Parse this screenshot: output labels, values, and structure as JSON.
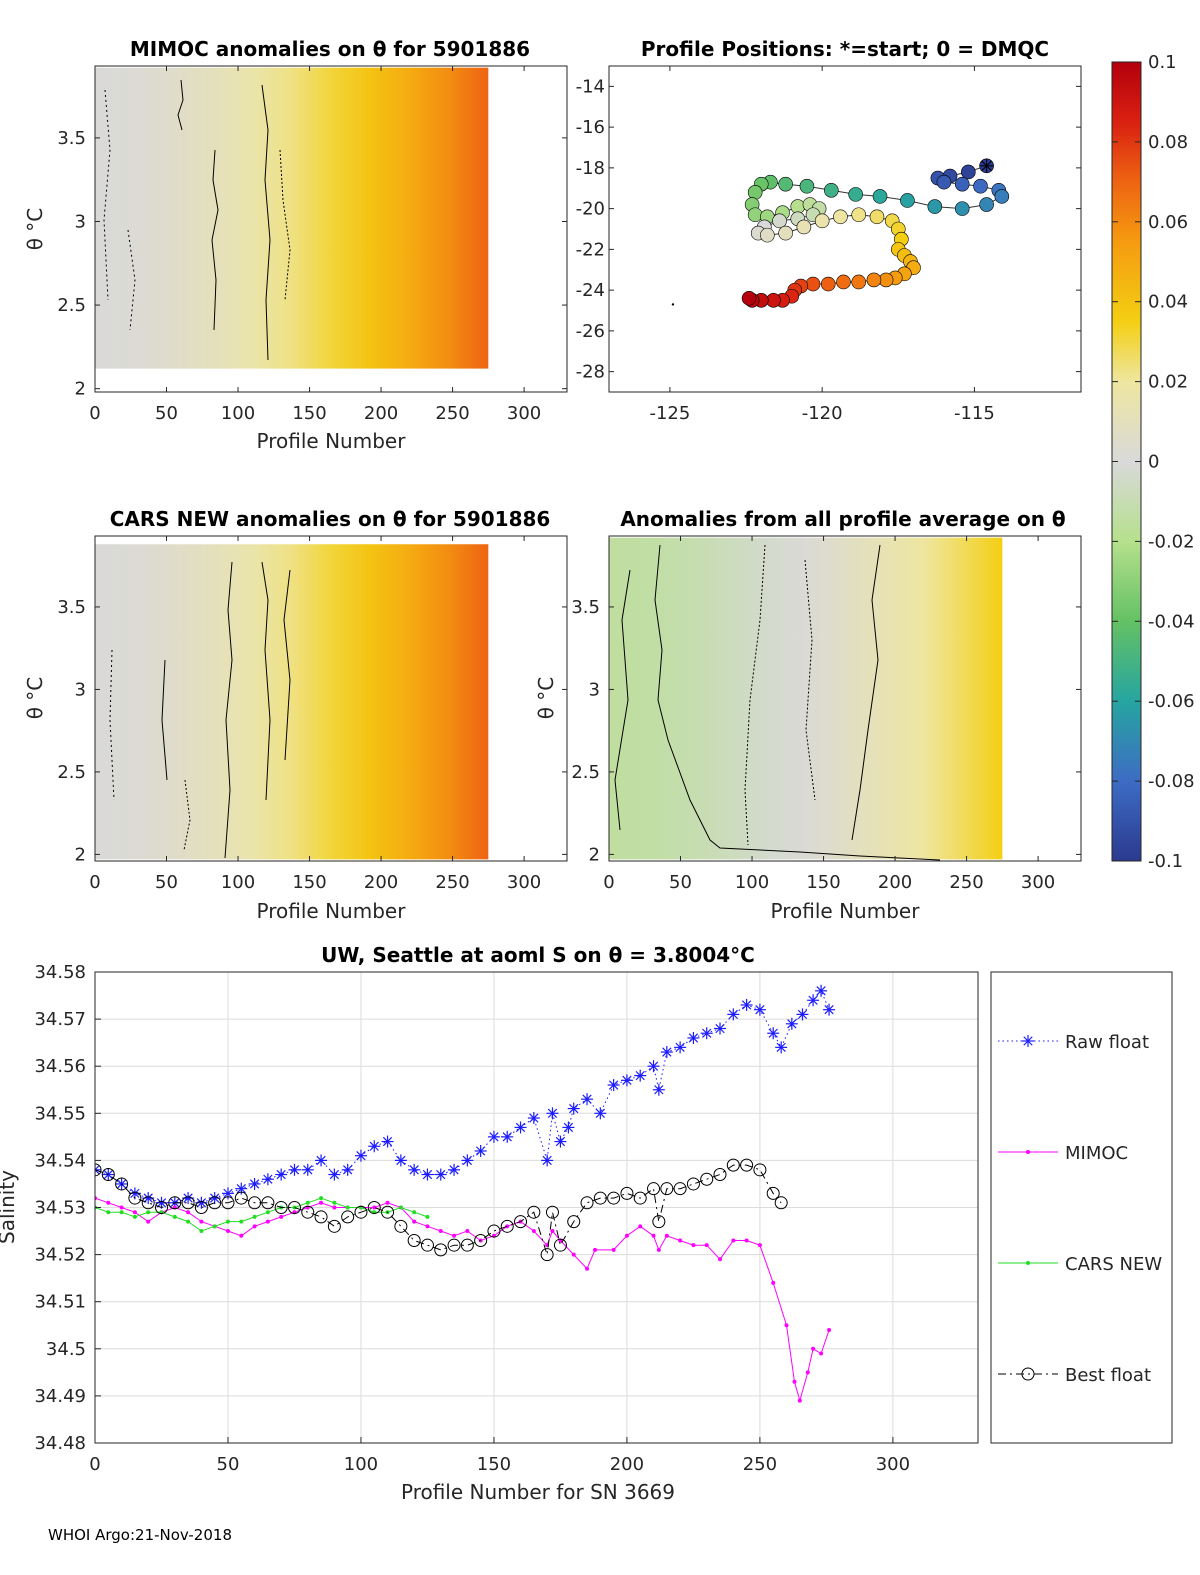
{
  "footer": "WHOI Argo:21-Nov-2018",
  "chart_data": [
    {
      "type": "heatmap",
      "id": "mimoc",
      "title": "MIMOC anomalies on θ  for 5901886",
      "xlabel": "Profile Number",
      "ylabel": "θ °C",
      "xlim": [
        0,
        330
      ],
      "ylim": [
        1.98,
        3.93
      ],
      "xticks": [
        0,
        50,
        100,
        150,
        200,
        250,
        300
      ],
      "yticks": [
        2,
        2.5,
        3,
        3.5
      ],
      "data_x_range": [
        0,
        275
      ],
      "data_theta_range": [
        2.12,
        3.92
      ],
      "anomaly_start": 0.0,
      "anomaly_end": 0.07
    },
    {
      "type": "scatter",
      "id": "positions",
      "title": "Profile Positions: *=start; 0 = DMQC",
      "xlabel": "",
      "ylabel": "",
      "xlim": [
        -127,
        -111.5
      ],
      "ylim": [
        -29,
        -13
      ],
      "xticks": [
        -125,
        -120,
        -115
      ],
      "yticks": [
        -14,
        -16,
        -18,
        -20,
        -22,
        -24,
        -26,
        -28
      ],
      "track_lon": [
        -114.6,
        -115.2,
        -115.8,
        -116.2,
        -116.0,
        -115.4,
        -114.8,
        -114.2,
        -114.1,
        -114.6,
        -115.4,
        -116.3,
        -117.2,
        -118.1,
        -118.9,
        -119.7,
        -120.5,
        -121.2,
        -121.7,
        -122.0,
        -122.2,
        -122.3,
        -122.2,
        -121.8,
        -121.3,
        -120.8,
        -120.4,
        -120.1,
        -120.3,
        -120.8,
        -121.4,
        -121.9,
        -122.1,
        -121.8,
        -121.2,
        -120.6,
        -120.0,
        -119.4,
        -118.8,
        -118.2,
        -117.7,
        -117.5,
        -117.4,
        -117.5,
        -117.3,
        -117.1,
        -117.0,
        -117.3,
        -117.6,
        -117.9,
        -118.3,
        -118.8,
        -119.3,
        -119.8,
        -120.3,
        -120.7,
        -120.9,
        -121.0,
        -121.3,
        -121.6,
        -122.0,
        -122.3,
        -122.4
      ],
      "track_lat": [
        -17.9,
        -18.2,
        -18.4,
        -18.5,
        -18.7,
        -18.8,
        -18.9,
        -19.1,
        -19.4,
        -19.8,
        -20.0,
        -19.9,
        -19.6,
        -19.4,
        -19.3,
        -19.1,
        -18.9,
        -18.8,
        -18.7,
        -18.8,
        -19.2,
        -19.8,
        -20.3,
        -20.4,
        -20.2,
        -19.9,
        -19.8,
        -20.0,
        -20.3,
        -20.5,
        -20.6,
        -20.9,
        -21.2,
        -21.3,
        -21.2,
        -20.9,
        -20.6,
        -20.4,
        -20.3,
        -20.4,
        -20.6,
        -21.0,
        -21.5,
        -22.0,
        -22.3,
        -22.6,
        -22.9,
        -23.2,
        -23.4,
        -23.5,
        -23.5,
        -23.6,
        -23.6,
        -23.7,
        -23.7,
        -23.8,
        -24.0,
        -24.3,
        -24.5,
        -24.5,
        -24.5,
        -24.5,
        -24.4
      ],
      "stray_point": [
        -124.9,
        -24.7
      ]
    },
    {
      "type": "heatmap",
      "id": "cars",
      "title": "CARS NEW anomalies on θ for 5901886",
      "xlabel": "Profile Number",
      "ylabel": "θ °C",
      "xlim": [
        0,
        330
      ],
      "ylim": [
        1.96,
        3.93
      ],
      "xticks": [
        0,
        50,
        100,
        150,
        200,
        250,
        300
      ],
      "yticks": [
        2,
        2.5,
        3,
        3.5
      ],
      "data_x_range": [
        0,
        275
      ],
      "data_theta_range": [
        1.97,
        3.88
      ],
      "anomaly_start": 0.0,
      "anomaly_end": 0.07
    },
    {
      "type": "heatmap",
      "id": "allprof",
      "title": "Anomalies from all profile average on θ",
      "xlabel": "Profile Number",
      "ylabel": "θ °C",
      "xlim": [
        0,
        330
      ],
      "ylim": [
        1.96,
        3.93
      ],
      "xticks": [
        0,
        50,
        100,
        150,
        200,
        250,
        300
      ],
      "yticks": [
        2,
        2.5,
        3,
        3.5
      ],
      "data_x_range": [
        0,
        275
      ],
      "data_theta_range": [
        1.97,
        3.92
      ],
      "anomaly_start": -0.015,
      "anomaly_end": 0.035
    },
    {
      "type": "colorbar",
      "id": "colorbar",
      "range": [
        -0.1,
        0.1
      ],
      "tick_labels": [
        "0.1",
        "0.08",
        "0.06",
        "0.04",
        "0.02",
        "0",
        "-0.02",
        "-0.04",
        "-0.06",
        "-0.08",
        "-0.1"
      ],
      "stops": [
        {
          "v": -0.1,
          "color": "#2b3a8f"
        },
        {
          "v": -0.08,
          "color": "#3d6cc4"
        },
        {
          "v": -0.06,
          "color": "#26a5a0"
        },
        {
          "v": -0.04,
          "color": "#64c164"
        },
        {
          "v": -0.02,
          "color": "#b6e08c"
        },
        {
          "v": 0.0,
          "color": "#d9d9d9"
        },
        {
          "v": 0.02,
          "color": "#eee6a0"
        },
        {
          "v": 0.035,
          "color": "#f4cf13"
        },
        {
          "v": 0.055,
          "color": "#f59b10"
        },
        {
          "v": 0.07,
          "color": "#ee6412"
        },
        {
          "v": 0.085,
          "color": "#d92011"
        },
        {
          "v": 0.1,
          "color": "#b3000c"
        }
      ]
    },
    {
      "type": "line",
      "id": "salinity",
      "title": "UW, Seattle at aoml S on θ = 3.8004°C",
      "xlabel": "Profile Number for SN 3669",
      "ylabel": "Salinity",
      "xlim": [
        0,
        332
      ],
      "ylim": [
        34.48,
        34.58
      ],
      "xticks": [
        0,
        50,
        100,
        150,
        200,
        250,
        300
      ],
      "yticks": [
        34.48,
        34.49,
        34.5,
        34.51,
        34.52,
        34.53,
        34.54,
        34.55,
        34.56,
        34.57,
        34.58
      ],
      "ytick_labels": [
        "34.48",
        "34.49",
        "34.5",
        "34.51",
        "34.52",
        "34.53",
        "34.54",
        "34.55",
        "34.56",
        "34.57",
        "34.58"
      ],
      "series": [
        {
          "name": "Raw float",
          "color": "#1c1cff",
          "marker": "star",
          "linestyle": "dotted",
          "x": [
            0,
            5,
            10,
            15,
            20,
            25,
            30,
            35,
            40,
            45,
            50,
            55,
            60,
            65,
            70,
            75,
            80,
            85,
            90,
            95,
            100,
            105,
            110,
            115,
            120,
            125,
            130,
            135,
            140,
            145,
            150,
            155,
            160,
            165,
            170,
            172,
            175,
            178,
            180,
            185,
            190,
            195,
            200,
            205,
            210,
            212,
            215,
            220,
            225,
            230,
            235,
            240,
            245,
            250,
            255,
            258,
            262,
            266,
            270,
            273,
            276
          ],
          "y": [
            34.538,
            34.537,
            34.535,
            34.533,
            34.532,
            34.531,
            34.531,
            34.532,
            34.531,
            34.532,
            34.533,
            34.534,
            34.535,
            34.536,
            34.537,
            34.538,
            34.538,
            34.54,
            34.537,
            34.538,
            34.541,
            34.543,
            34.544,
            34.54,
            34.538,
            34.537,
            34.537,
            34.538,
            34.54,
            34.542,
            34.545,
            34.545,
            34.547,
            34.549,
            34.54,
            34.55,
            34.544,
            34.547,
            34.551,
            34.553,
            34.55,
            34.556,
            34.557,
            34.558,
            34.56,
            34.555,
            34.563,
            34.564,
            34.566,
            34.567,
            34.568,
            34.571,
            34.573,
            34.572,
            34.567,
            34.564,
            34.569,
            34.571,
            34.574,
            34.576,
            34.572
          ]
        },
        {
          "name": "MIMOC",
          "color": "#ff00ff",
          "marker": "dot",
          "linestyle": "solid",
          "x": [
            0,
            5,
            10,
            15,
            20,
            25,
            30,
            35,
            40,
            45,
            50,
            55,
            60,
            65,
            70,
            75,
            80,
            85,
            90,
            95,
            100,
            105,
            110,
            115,
            120,
            125,
            130,
            135,
            140,
            145,
            150,
            155,
            160,
            165,
            170,
            172,
            175,
            180,
            185,
            188,
            195,
            200,
            205,
            210,
            212,
            215,
            220,
            225,
            230,
            235,
            240,
            245,
            250,
            255,
            260,
            263,
            265,
            268,
            270,
            273,
            276
          ],
          "y": [
            34.532,
            34.531,
            34.53,
            34.529,
            34.527,
            34.529,
            34.53,
            34.529,
            34.527,
            34.526,
            34.525,
            34.524,
            34.526,
            34.527,
            34.528,
            34.529,
            34.53,
            34.531,
            34.53,
            34.53,
            34.53,
            34.53,
            34.531,
            34.53,
            34.527,
            34.526,
            34.525,
            34.524,
            34.525,
            34.523,
            34.524,
            34.526,
            34.527,
            34.525,
            34.522,
            34.525,
            34.523,
            34.52,
            34.517,
            34.521,
            34.521,
            34.524,
            34.526,
            34.524,
            34.521,
            34.524,
            34.523,
            34.522,
            34.522,
            34.519,
            34.523,
            34.523,
            34.522,
            34.514,
            34.505,
            34.493,
            34.489,
            34.495,
            34.5,
            34.499,
            34.504
          ]
        },
        {
          "name": "CARS NEW",
          "color": "#22dd22",
          "marker": "dot",
          "linestyle": "solid",
          "x": [
            0,
            5,
            10,
            15,
            20,
            25,
            30,
            35,
            40,
            45,
            50,
            55,
            60,
            65,
            70,
            75,
            80,
            85,
            90,
            95,
            100,
            105,
            110,
            115,
            120,
            125
          ],
          "y": [
            34.53,
            34.529,
            34.529,
            34.528,
            34.529,
            34.529,
            34.528,
            34.527,
            34.525,
            34.526,
            34.527,
            34.527,
            34.528,
            34.529,
            34.53,
            34.53,
            34.531,
            34.532,
            34.531,
            34.53,
            34.53,
            34.529,
            34.529,
            34.53,
            34.529,
            34.528
          ]
        },
        {
          "name": "Best float",
          "color": "#000000",
          "marker": "circle",
          "linestyle": "dashdot",
          "x": [
            0,
            5,
            10,
            15,
            20,
            25,
            30,
            35,
            40,
            45,
            50,
            55,
            60,
            65,
            70,
            75,
            80,
            85,
            90,
            95,
            100,
            105,
            110,
            115,
            120,
            125,
            130,
            135,
            140,
            145,
            150,
            155,
            160,
            165,
            170,
            172,
            175,
            180,
            185,
            190,
            195,
            200,
            205,
            210,
            212,
            215,
            220,
            225,
            230,
            235,
            240,
            245,
            250,
            255,
            258
          ],
          "y": [
            34.538,
            34.537,
            34.535,
            34.532,
            34.531,
            34.53,
            34.531,
            34.531,
            34.53,
            34.531,
            34.531,
            34.532,
            34.531,
            34.531,
            34.53,
            34.53,
            34.529,
            34.528,
            34.526,
            34.528,
            34.529,
            34.53,
            34.529,
            34.526,
            34.523,
            34.522,
            34.521,
            34.522,
            34.522,
            34.523,
            34.525,
            34.526,
            34.527,
            34.529,
            34.52,
            34.529,
            34.522,
            34.527,
            34.531,
            34.532,
            34.532,
            34.533,
            34.532,
            34.534,
            34.527,
            34.534,
            34.534,
            34.535,
            34.536,
            34.537,
            34.539,
            34.539,
            34.538,
            34.533,
            34.531
          ]
        }
      ]
    }
  ]
}
